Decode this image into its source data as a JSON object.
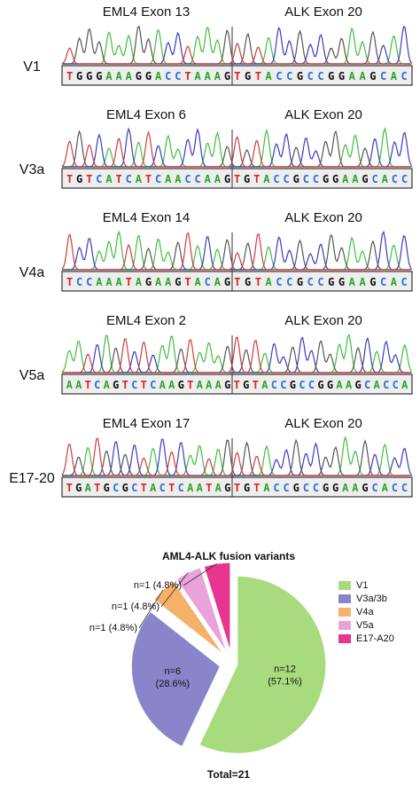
{
  "traces": [
    {
      "label": "V1",
      "left_title": "EML4 Exon 13",
      "right_title": "ALK Exon 20",
      "left_sequence": "TGGGAAAGGACCTAAAG",
      "right_sequence": "TGTACCGCCGGAAGCAC"
    },
    {
      "label": "V3a",
      "left_title": "EML4 Exon 6",
      "right_title": "ALK Exon 20",
      "left_sequence": "TGTCATCATCAACCAAG",
      "right_sequence": "TGTACCGCCGGAAGCACC"
    },
    {
      "label": "V4a",
      "left_title": "EML4 Exon 14",
      "right_title": "ALK Exon 20",
      "left_sequence": "TCCAAATAGAAGTACAG",
      "right_sequence": "TGTACCGCCGGAAGCAC"
    },
    {
      "label": "V5a",
      "left_title": "EML4 Exon 2",
      "right_title": "ALK Exon 20",
      "left_sequence": "AATCAGTCTCAAGTAAAG",
      "right_sequence": "TGTACCGCCGGAAGCACCA"
    },
    {
      "label": "E17-20",
      "left_title": "EML4 Exon 17",
      "right_title": "ALK Exon 20",
      "left_sequence": "TGATGCGCTACTCAATAG",
      "right_sequence": "TGTACCGCCGGAAGCACC"
    }
  ],
  "chart_data": {
    "type": "pie",
    "title": "AML4-ALK fusion variants",
    "categories": [
      "V1",
      "V3a/3b",
      "V4a",
      "V5a",
      "E17-A20"
    ],
    "values": [
      57.1,
      28.6,
      4.8,
      4.8,
      4.8
    ],
    "value_labels": [
      "n=12 (57.1%)",
      "n=6 (28.6%)",
      "n=1 (4.8%)",
      "n=1 (4.8%)",
      "n=1 (4.8%)"
    ],
    "colors": [
      "#a8db7e",
      "#8a85cb",
      "#f5b06a",
      "#eaa2da",
      "#e8358f"
    ],
    "footer": "Total=21"
  }
}
